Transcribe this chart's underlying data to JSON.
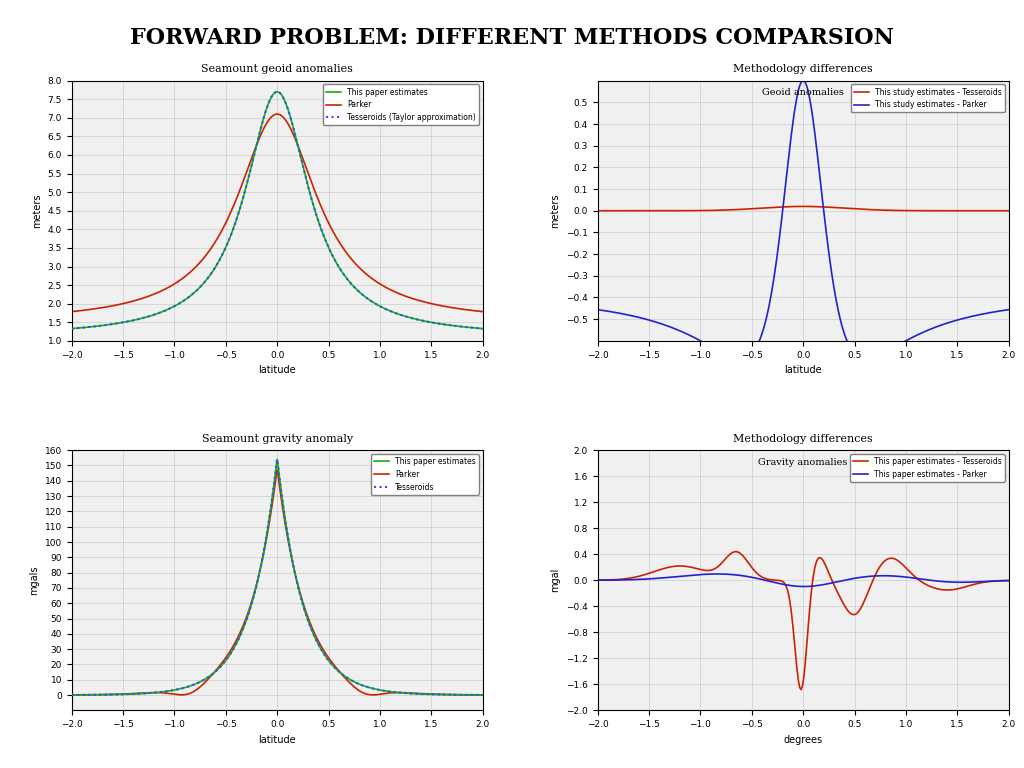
{
  "title": "FORWARD PROBLEM: DIFFERENT METHODS COMPARSION",
  "title_fontsize": 16,
  "title_fontweight": "bold",
  "title_fontfamily": "DejaVu Serif",
  "plot1": {
    "title": "Seamount geoid anomalies",
    "xlabel": "latitude",
    "ylabel": "meters",
    "xlim": [
      -2,
      2
    ],
    "ylim": [
      1,
      8
    ],
    "yticks": [
      1,
      1.5,
      2,
      2.5,
      3,
      3.5,
      4,
      4.5,
      5,
      5.5,
      6,
      6.5,
      7,
      7.5,
      8
    ],
    "xticks": [
      -2,
      -1.5,
      -1,
      -0.5,
      0,
      0.5,
      1,
      1.5,
      2
    ],
    "legend": [
      "This paper estimates",
      "Parker",
      "Tesseroids (Taylor approximation)"
    ],
    "colors": [
      "#00bb00",
      "#cc2200",
      "#4444ff"
    ],
    "linestyles": [
      "-",
      "-",
      ":"
    ],
    "linewidths": [
      1.2,
      1.2,
      1.5
    ]
  },
  "plot2": {
    "title": "Methodology differences",
    "subtitle": "Geoid anomalies",
    "xlabel": "latitude",
    "ylabel": "meters",
    "xlim": [
      -2,
      2
    ],
    "ylim": [
      -0.6,
      0.6
    ],
    "yticks": [
      -0.5,
      -0.4,
      -0.3,
      -0.2,
      -0.1,
      0,
      0.1,
      0.2,
      0.3,
      0.4,
      0.5
    ],
    "xticks": [
      -2,
      -1.5,
      -1,
      -0.5,
      0,
      0.5,
      1,
      1.5,
      2
    ],
    "legend": [
      "This study estimates - Tesseroids",
      "This study estimates - Parker"
    ],
    "colors": [
      "#cc2200",
      "#2222cc"
    ],
    "linestyles": [
      "-",
      "-"
    ],
    "linewidths": [
      1.2,
      1.2
    ]
  },
  "plot3": {
    "title": "Seamount gravity anomaly",
    "xlabel": "latitude",
    "ylabel": "mgals",
    "xlim": [
      -2,
      2
    ],
    "ylim": [
      -10,
      160
    ],
    "yticks": [
      0,
      10,
      20,
      30,
      40,
      50,
      60,
      70,
      80,
      90,
      100,
      110,
      120,
      130,
      140,
      150,
      160
    ],
    "xticks": [
      -2,
      -1.5,
      -1,
      -0.5,
      0,
      0.5,
      1,
      1.5,
      2
    ],
    "legend": [
      "This paper estimates",
      "Parker",
      "Tesseroids"
    ],
    "colors": [
      "#00bb00",
      "#cc2200",
      "#4444ff"
    ],
    "linestyles": [
      "-",
      "-",
      ":"
    ],
    "linewidths": [
      1.2,
      1.2,
      1.5
    ]
  },
  "plot4": {
    "title": "Methodology differences",
    "subtitle": "Gravity anomalies",
    "xlabel": "degrees",
    "ylabel": "mgal",
    "xlim": [
      -2,
      2
    ],
    "ylim": [
      -2,
      2
    ],
    "yticks": [
      -2,
      -1.6,
      -1.2,
      -0.8,
      -0.4,
      0,
      0.4,
      0.8,
      1.2,
      1.6,
      2
    ],
    "xticks": [
      -2,
      -1.5,
      -1,
      -0.5,
      0,
      0.5,
      1,
      1.5,
      2
    ],
    "legend": [
      "This paper estimates - Tesseroids",
      "This paper estimates - Parker"
    ],
    "colors": [
      "#cc2200",
      "#2222cc"
    ],
    "linestyles": [
      "-",
      "-"
    ],
    "linewidths": [
      1.2,
      1.2
    ]
  },
  "background_color": "#ffffff",
  "axes_facecolor": "#f0f0f0",
  "grid_color": "#cccccc",
  "grid_alpha": 1.0
}
